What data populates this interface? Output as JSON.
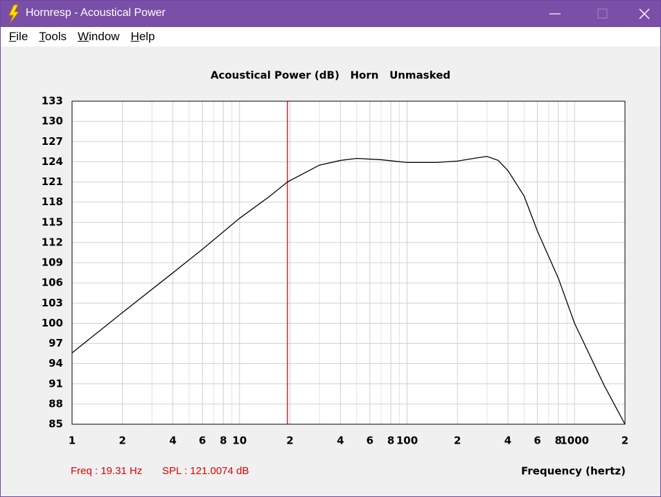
{
  "window": {
    "title": "Hornresp - Acoustical Power",
    "menu": [
      "File",
      "Tools",
      "Window",
      "Help"
    ]
  },
  "chart_data": {
    "type": "line",
    "title": "Acoustical Power (dB)   Horn   Unmasked",
    "xlabel": "Frequency (hertz)",
    "xscale": "log",
    "xlim": [
      1,
      2000
    ],
    "ylim": [
      85,
      133
    ],
    "xticks": [
      1,
      2,
      4,
      6,
      8,
      10,
      {
        "value": 20,
        "label": "2"
      },
      {
        "value": 40,
        "label": "4"
      },
      {
        "value": 60,
        "label": "6"
      },
      {
        "value": 80,
        "label": "8"
      },
      100,
      {
        "value": 200,
        "label": "2"
      },
      {
        "value": 400,
        "label": "4"
      },
      {
        "value": 600,
        "label": "6"
      },
      {
        "value": 800,
        "label": "8"
      },
      1000,
      {
        "value": 2000,
        "label": "2"
      }
    ],
    "xminor": [
      3,
      5,
      7,
      9,
      30,
      50,
      70,
      90,
      300,
      500,
      700,
      900
    ],
    "yticks": [
      85,
      88,
      91,
      94,
      97,
      100,
      103,
      106,
      109,
      112,
      115,
      118,
      121,
      124,
      127,
      130,
      133
    ],
    "grid": true,
    "color": "#000000",
    "x": [
      1,
      2,
      4,
      6,
      10,
      15,
      19.31,
      30,
      40,
      50,
      70,
      100,
      150,
      200,
      250,
      300,
      350,
      400,
      500,
      600,
      800,
      1000,
      1500,
      2000
    ],
    "values": [
      95.6,
      101.6,
      107.5,
      111.0,
      115.6,
      118.8,
      121.0,
      123.5,
      124.2,
      124.5,
      124.3,
      123.9,
      123.9,
      124.1,
      124.5,
      124.8,
      124.2,
      122.7,
      118.9,
      113.7,
      106.7,
      100.0,
      90.8,
      85.0
    ],
    "cursor": {
      "x": 19.31,
      "color": "#e00000"
    },
    "annotations": [
      "Freq : 19.31 Hz",
      "SPL : 121.0074 dB"
    ]
  }
}
